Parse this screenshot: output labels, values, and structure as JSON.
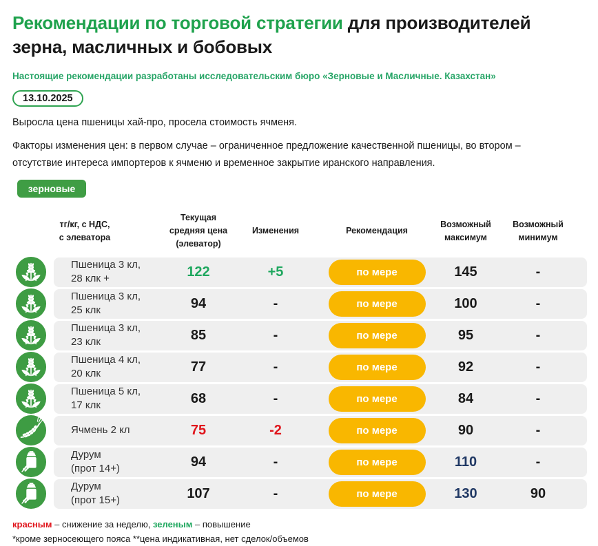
{
  "header": {
    "title_highlight": "Рекомендации по торговой стратегии",
    "title_rest_line1": " для производителей",
    "title_line2": "зерна, масличных и бобовых",
    "subtitle": "Настоящие рекомендации разработаны исследовательским бюро «Зерновые и Масличные. Казахстан»",
    "date": "13.10.2025"
  },
  "intro": {
    "para1": "Выросла цена пшеницы хай-про, просела стоимость ячменя.",
    "para2": "Факторы изменения цен: в первом случае – ограниченное предложение качественной пшеницы, во втором – отсутствие интереса импортеров к ячменю и временное закрытие иранского направления.",
    "category_badge": "зерновые"
  },
  "table": {
    "headers": [
      {
        "lines": [
          "тг/кг, с НДС,",
          "с элеватора"
        ]
      },
      {
        "lines": [
          "Текущая",
          "средняя цена",
          "(элеватор)"
        ]
      },
      {
        "lines": [
          "Изменения"
        ]
      },
      {
        "lines": [
          "Рекомендация"
        ]
      },
      {
        "lines": [
          "Возможный",
          "максимум"
        ]
      },
      {
        "lines": [
          "Возможный",
          "минимум"
        ]
      }
    ],
    "rows": [
      {
        "icon": "wheat",
        "name": [
          "Пшеница 3 кл,",
          "28 клк +"
        ],
        "price": "122",
        "price_color": "green",
        "change": "+5",
        "change_color": "green",
        "recommendation": "по мере",
        "max": "145",
        "max_color": "default",
        "min": "-"
      },
      {
        "icon": "wheat",
        "name": [
          "Пшеница 3 кл,",
          "25 клк"
        ],
        "price": "94",
        "price_color": "default",
        "change": "-",
        "change_color": "default",
        "recommendation": "по мере",
        "max": "100",
        "max_color": "default",
        "min": "-"
      },
      {
        "icon": "wheat",
        "name": [
          "Пшеница 3 кл,",
          "23 клк"
        ],
        "price": "85",
        "price_color": "default",
        "change": "-",
        "change_color": "default",
        "recommendation": "по мере",
        "max": "95",
        "max_color": "default",
        "min": "-"
      },
      {
        "icon": "wheat",
        "name": [
          "Пшеница 4 кл,",
          "20 клк"
        ],
        "price": "77",
        "price_color": "default",
        "change": "-",
        "change_color": "default",
        "recommendation": "по мере",
        "max": "92",
        "max_color": "default",
        "min": "-"
      },
      {
        "icon": "wheat",
        "name": [
          "Пшеница 5 кл,",
          "17 клк"
        ],
        "price": "68",
        "price_color": "default",
        "change": "-",
        "change_color": "default",
        "recommendation": "по мере",
        "max": "84",
        "max_color": "default",
        "min": "-"
      },
      {
        "icon": "barley",
        "name": [
          "Ячмень 2 кл"
        ],
        "price": "75",
        "price_color": "red",
        "change": "-2",
        "change_color": "red",
        "recommendation": "по мере",
        "max": "90",
        "max_color": "default",
        "min": "-"
      },
      {
        "icon": "durum",
        "name": [
          "Дурум",
          "(прот 14+)"
        ],
        "price": "94",
        "price_color": "default",
        "change": "-",
        "change_color": "default",
        "recommendation": "по мере",
        "max": "110",
        "max_color": "navy",
        "min": "-"
      },
      {
        "icon": "durum",
        "name": [
          "Дурум",
          "(прот 15+)"
        ],
        "price": "107",
        "price_color": "default",
        "change": "-",
        "change_color": "default",
        "recommendation": "по мере",
        "max": "130",
        "max_color": "navy",
        "min": "90"
      }
    ]
  },
  "footer": {
    "red_word": "красным",
    "red_text": " – снижение за неделю, ",
    "green_word": "зеленым",
    "green_text": " – повышение",
    "line2": "*кроме зерносеющего пояса **цена индикативная, нет сделок/объемов"
  },
  "colors": {
    "title_green": "#1fa24d",
    "subtitle_green": "#27a567",
    "date_border_green": "#2fa351",
    "badge_green": "#3f9d44",
    "icon_green": "#3e9c43",
    "pill_yellow": "#f9b700",
    "row_gray": "#efefef",
    "num_green": "#1ea75e",
    "num_red": "#e0151c",
    "num_navy": "#203864",
    "text_black": "#1a1a1a"
  }
}
